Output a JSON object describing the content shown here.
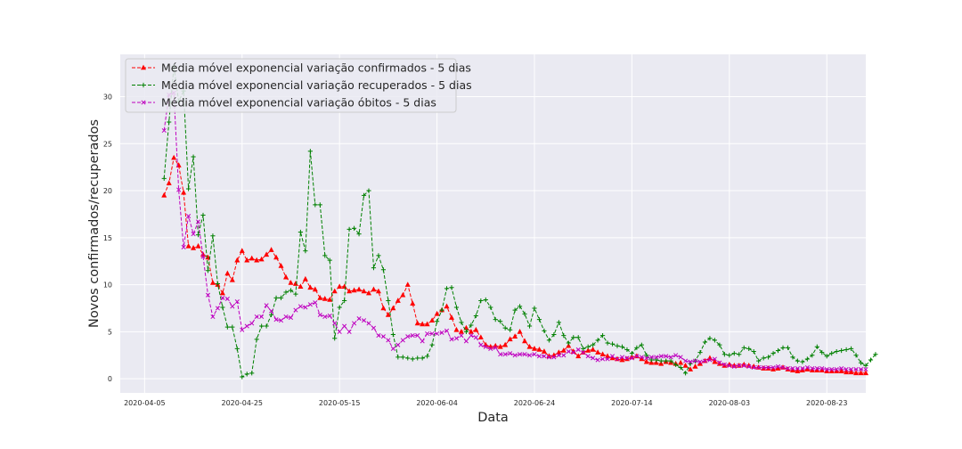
{
  "chart_data": {
    "type": "line",
    "xlabel": "Data",
    "ylabel": "Novos confirmados/recuperados",
    "start_date": "2020-04-09",
    "x_range": [
      "2020-03-31",
      "2020-08-31"
    ],
    "ylim": [
      -1.5,
      34.5
    ],
    "x_tick_labels": [
      "2020-04-05",
      "2020-04-25",
      "2020-05-15",
      "2020-06-04",
      "2020-06-24",
      "2020-07-14",
      "2020-08-03",
      "2020-08-23"
    ],
    "y_ticks": [
      0,
      5,
      10,
      15,
      20,
      25,
      30
    ],
    "grid": true,
    "legend_position": "top-left",
    "series": [
      {
        "name": "Média móvel exponencial variação confirmados - 5 dias",
        "color": "#ff0000",
        "marker": "triangle",
        "values": [
          19.5,
          20.8,
          23.5,
          22.7,
          19.8,
          14.1,
          13.9,
          14.1,
          13.2,
          12.9,
          10.2,
          10.0,
          9.1,
          11.2,
          10.5,
          12.6,
          13.6,
          12.6,
          12.8,
          12.6,
          12.7,
          13.2,
          13.7,
          12.9,
          12.0,
          10.8,
          10.2,
          10.1,
          9.8,
          10.6,
          9.7,
          9.5,
          8.6,
          8.5,
          8.4,
          9.3,
          9.8,
          9.8,
          9.3,
          9.4,
          9.5,
          9.3,
          9.1,
          9.5,
          9.3,
          7.5,
          6.8,
          7.5,
          8.3,
          8.9,
          10.0,
          8.0,
          5.9,
          5.8,
          5.8,
          6.2,
          6.9,
          7.3,
          7.7,
          6.5,
          5.2,
          5.0,
          5.4,
          5.0,
          5.2,
          4.4,
          3.6,
          3.4,
          3.5,
          3.4,
          3.6,
          4.2,
          4.5,
          5.0,
          4.0,
          3.4,
          3.2,
          3.1,
          2.9,
          2.4,
          2.5,
          2.8,
          3.0,
          3.5,
          2.9,
          2.4,
          2.8,
          3.0,
          3.1,
          2.8,
          2.6,
          2.4,
          2.2,
          2.1,
          2.0,
          2.1,
          2.3,
          2.4,
          2.1,
          1.8,
          1.7,
          1.7,
          1.6,
          1.8,
          1.7,
          1.6,
          1.7,
          1.4,
          1.0,
          1.3,
          1.6,
          1.9,
          2.2,
          1.8,
          1.6,
          1.4,
          1.5,
          1.4,
          1.4,
          1.5,
          1.4,
          1.3,
          1.2,
          1.1,
          1.1,
          1.0,
          1.1,
          1.2,
          1.0,
          0.9,
          0.8,
          0.9,
          1.0,
          0.9,
          0.9,
          0.9,
          0.8,
          0.8,
          0.8,
          0.8,
          0.7,
          0.7,
          0.6,
          0.6,
          0.6
        ]
      },
      {
        "name": "Média móvel exponencial variação recuperados - 5 dias",
        "color": "#008000",
        "marker": "plus",
        "values": [
          21.3,
          27.3,
          33.2,
          29.5,
          30.6,
          20.2,
          23.6,
          15.3,
          17.4,
          11.5,
          15.2,
          10.1,
          7.6,
          5.5,
          5.5,
          3.2,
          0.2,
          0.5,
          0.6,
          4.2,
          5.6,
          5.6,
          6.8,
          8.6,
          8.6,
          9.2,
          9.4,
          9.0,
          15.6,
          13.6,
          24.2,
          18.5,
          18.5,
          13.1,
          12.6,
          4.3,
          7.6,
          8.3,
          15.9,
          16.0,
          15.4,
          19.5,
          20.0,
          11.8,
          13.1,
          11.6,
          8.3,
          4.7,
          2.3,
          2.3,
          2.2,
          2.1,
          2.2,
          2.2,
          2.4,
          3.6,
          6.1,
          7.3,
          9.6,
          9.7,
          7.6,
          6.0,
          5.0,
          5.7,
          6.7,
          8.3,
          8.4,
          7.6,
          6.3,
          6.1,
          5.4,
          5.2,
          7.3,
          7.7,
          6.9,
          5.6,
          7.5,
          6.3,
          5.1,
          4.1,
          4.7,
          6.0,
          4.6,
          3.8,
          4.4,
          4.4,
          3.2,
          3.4,
          3.6,
          4.1,
          4.6,
          3.8,
          3.7,
          3.5,
          3.4,
          3.1,
          2.7,
          3.3,
          3.6,
          2.5,
          2.0,
          2.0,
          1.9,
          1.9,
          1.9,
          1.5,
          1.2,
          0.6,
          1.6,
          1.9,
          2.8,
          3.9,
          4.3,
          4.1,
          3.6,
          2.6,
          2.5,
          2.7,
          2.6,
          3.3,
          3.2,
          2.9,
          1.9,
          2.2,
          2.3,
          2.7,
          3.0,
          3.3,
          3.3,
          2.3,
          1.9,
          1.8,
          2.1,
          2.5,
          3.4,
          2.8,
          2.4,
          2.7,
          2.9,
          3.0,
          3.1,
          3.2,
          2.5,
          1.7,
          1.4,
          2.0,
          2.6
        ]
      },
      {
        "name": "Média móvel exponencial variação óbitos - 5 dias",
        "color": "#bf00bf",
        "marker": "x",
        "values": [
          26.4,
          30.2,
          30.4,
          20.1,
          14.0,
          17.3,
          15.4,
          16.7,
          13.0,
          8.9,
          6.6,
          7.5,
          8.6,
          8.5,
          7.7,
          8.2,
          5.2,
          5.6,
          5.9,
          6.6,
          6.6,
          7.8,
          7.2,
          6.3,
          6.2,
          6.6,
          6.5,
          7.3,
          7.7,
          7.6,
          7.9,
          8.1,
          6.8,
          6.6,
          6.7,
          5.9,
          5.0,
          5.6,
          5.0,
          5.9,
          6.4,
          6.2,
          5.9,
          5.4,
          4.6,
          4.5,
          4.1,
          3.2,
          3.6,
          4.1,
          4.5,
          4.6,
          4.6,
          4.0,
          4.8,
          4.8,
          4.8,
          4.9,
          5.1,
          4.2,
          4.3,
          4.6,
          4.0,
          4.6,
          4.4,
          3.6,
          3.4,
          3.2,
          3.3,
          2.6,
          2.6,
          2.7,
          2.5,
          2.6,
          2.6,
          2.5,
          2.6,
          2.4,
          2.4,
          2.3,
          2.3,
          2.5,
          2.5,
          2.9,
          2.8,
          3.1,
          2.8,
          2.4,
          2.2,
          2.0,
          2.1,
          2.1,
          2.4,
          2.1,
          2.3,
          2.2,
          2.2,
          2.4,
          2.3,
          2.2,
          2.3,
          2.3,
          2.4,
          2.4,
          2.3,
          2.5,
          2.3,
          1.9,
          1.8,
          1.9,
          1.8,
          1.9,
          2.0,
          2.1,
          1.7,
          1.5,
          1.4,
          1.3,
          1.4,
          1.4,
          1.3,
          1.2,
          1.2,
          1.2,
          1.2,
          1.2,
          1.3,
          1.2,
          1.1,
          1.1,
          1.1,
          1.1,
          1.2,
          1.1,
          1.1,
          1.1,
          1.0,
          1.0,
          1.0,
          1.1,
          1.0,
          1.0,
          1.0,
          1.0,
          1.0
        ]
      }
    ]
  }
}
